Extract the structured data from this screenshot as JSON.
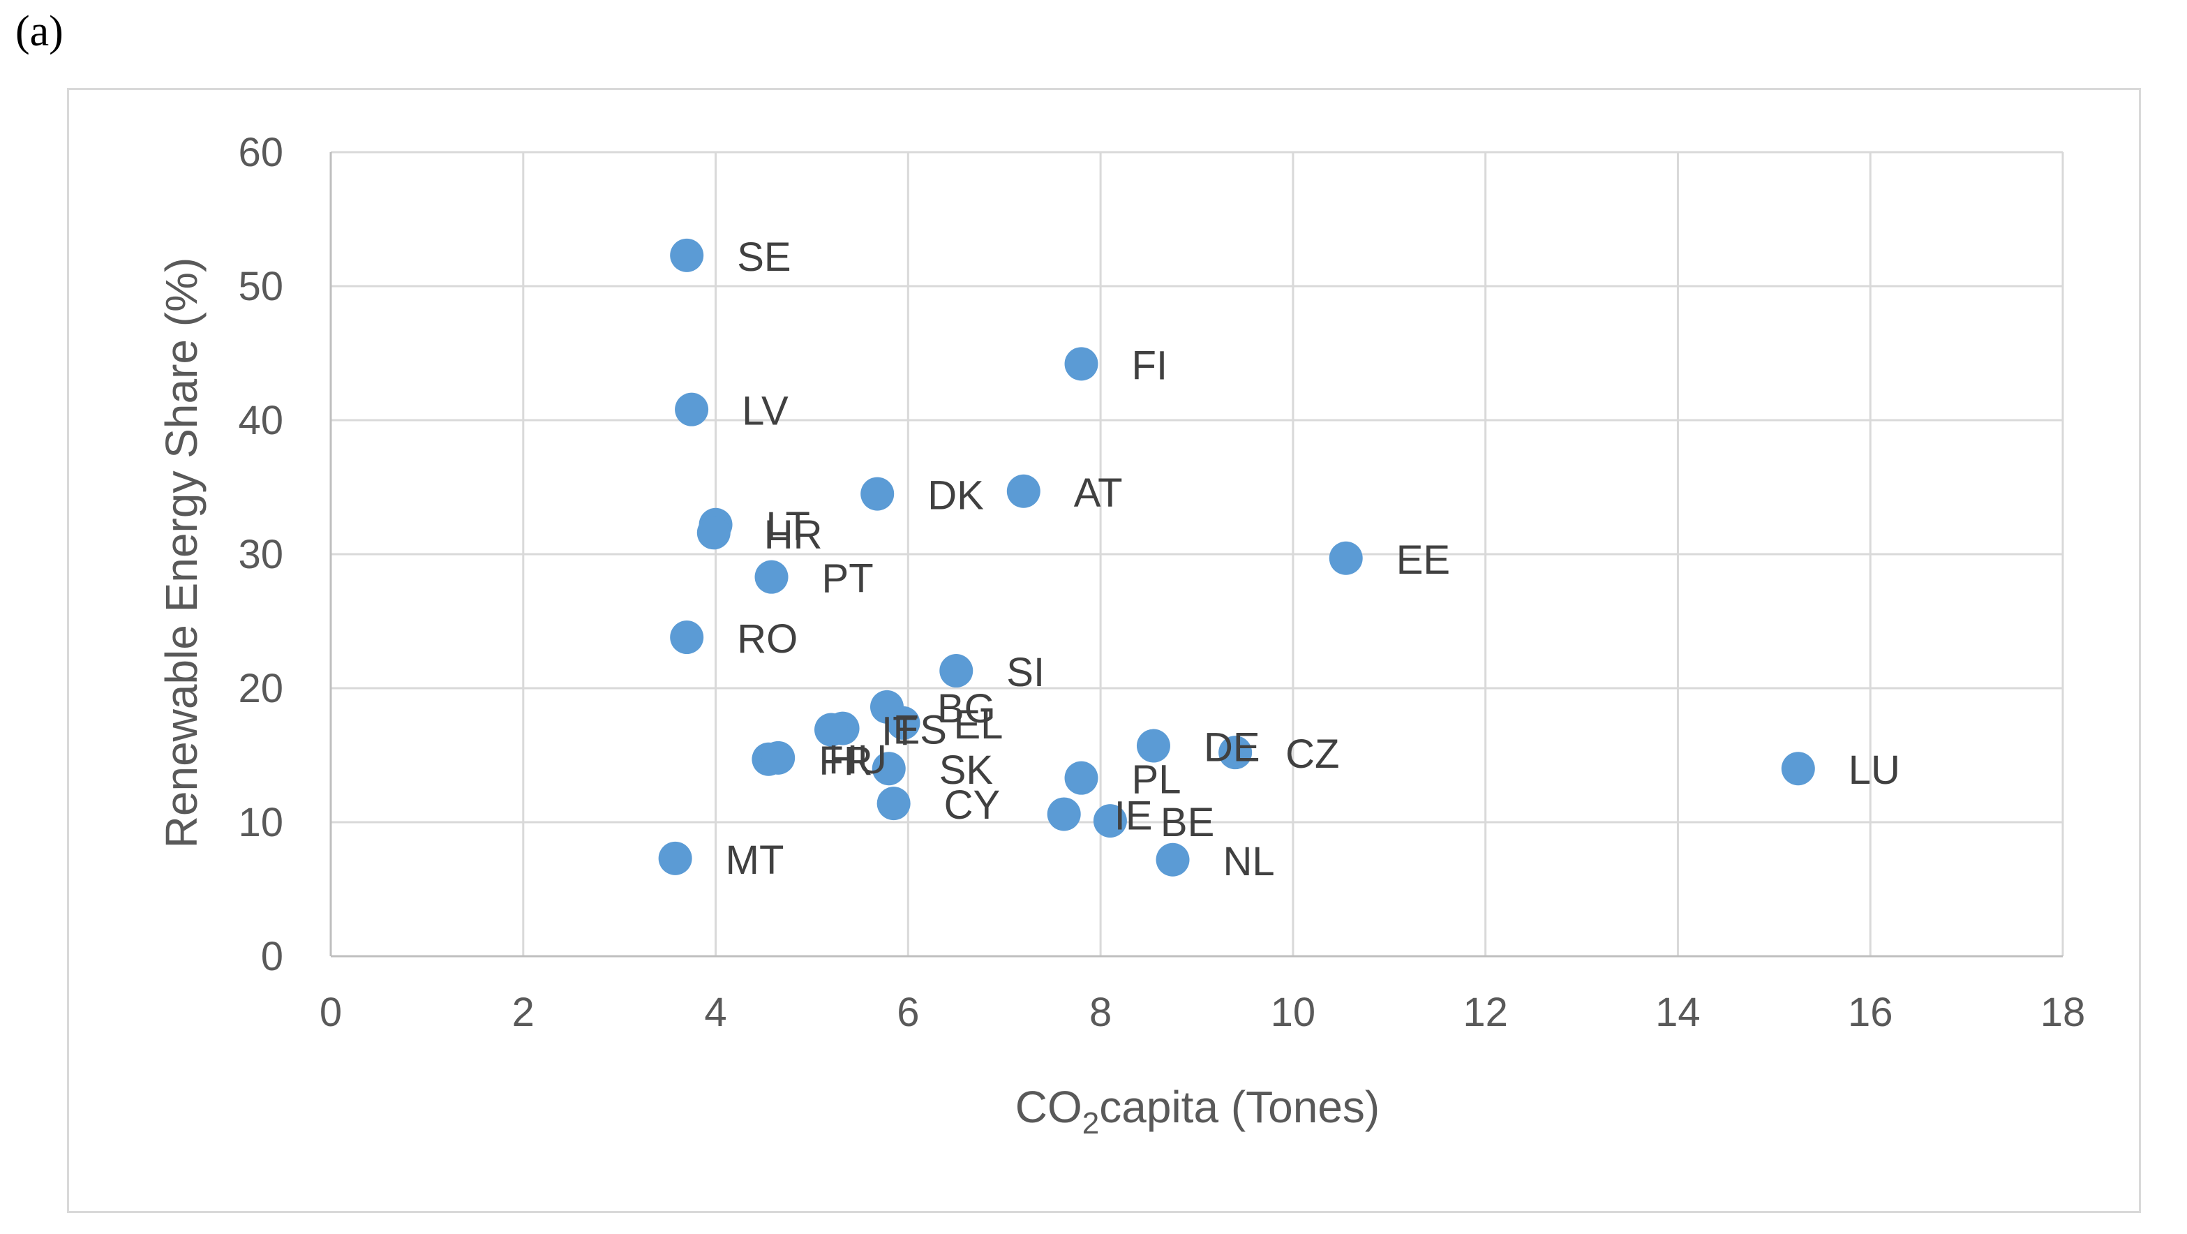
{
  "panel_label": "(a)",
  "chart_data": {
    "type": "scatter",
    "xlabel_main": "CO",
    "xlabel_sub": "2",
    "xlabel_rest": "capita (Tones)",
    "ylabel": "Renewable Energy Share (%)",
    "xlim": [
      0,
      18
    ],
    "ylim": [
      0,
      60
    ],
    "xticks": [
      0,
      2,
      4,
      6,
      8,
      10,
      12,
      14,
      16,
      18
    ],
    "yticks": [
      0,
      10,
      20,
      30,
      40,
      50,
      60
    ],
    "grid": true,
    "marker_color": "#5b9bd5",
    "points": [
      {
        "label": "SE",
        "x": 3.7,
        "y": 52.3
      },
      {
        "label": "FI",
        "x": 7.8,
        "y": 44.2
      },
      {
        "label": "LV",
        "x": 3.75,
        "y": 40.8
      },
      {
        "label": "LT",
        "x": 4.0,
        "y": 32.2
      },
      {
        "label": "HR",
        "x": 3.98,
        "y": 31.6
      },
      {
        "label": "DK",
        "x": 5.68,
        "y": 34.5
      },
      {
        "label": "AT",
        "x": 7.2,
        "y": 34.7
      },
      {
        "label": "PT",
        "x": 4.58,
        "y": 28.3
      },
      {
        "label": "EE",
        "x": 10.55,
        "y": 29.7
      },
      {
        "label": "RO",
        "x": 3.7,
        "y": 23.8
      },
      {
        "label": "SI",
        "x": 6.5,
        "y": 21.3
      },
      {
        "label": "BG",
        "x": 5.78,
        "y": 18.6
      },
      {
        "label": "EL",
        "x": 5.95,
        "y": 17.4
      },
      {
        "label": "ES",
        "x": 5.32,
        "y": 17.0
      },
      {
        "label": "IT",
        "x": 5.2,
        "y": 16.9
      },
      {
        "label": "FR",
        "x": 4.55,
        "y": 14.7
      },
      {
        "label": "HU",
        "x": 4.65,
        "y": 14.8
      },
      {
        "label": "SK",
        "x": 5.8,
        "y": 14.0
      },
      {
        "label": "DE",
        "x": 8.55,
        "y": 15.7
      },
      {
        "label": "CZ",
        "x": 9.4,
        "y": 15.2
      },
      {
        "label": "LU",
        "x": 15.25,
        "y": 14.0
      },
      {
        "label": "PL",
        "x": 7.8,
        "y": 13.3
      },
      {
        "label": "CY",
        "x": 5.85,
        "y": 11.4
      },
      {
        "label": "IE",
        "x": 7.62,
        "y": 10.6
      },
      {
        "label": "BE",
        "x": 8.1,
        "y": 10.1
      },
      {
        "label": "MT",
        "x": 3.58,
        "y": 7.3
      },
      {
        "label": "NL",
        "x": 8.75,
        "y": 7.2
      }
    ]
  }
}
